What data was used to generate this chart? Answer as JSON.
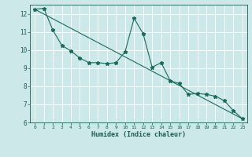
{
  "xlabel": "Humidex (Indice chaleur)",
  "ylabel": "",
  "bg_color": "#cce8e8",
  "grid_color": "#ffffff",
  "line_color": "#1a6b5a",
  "xlim": [
    -0.5,
    23.5
  ],
  "ylim": [
    6,
    12.5
  ],
  "xticks": [
    0,
    1,
    2,
    3,
    4,
    5,
    6,
    7,
    8,
    9,
    10,
    11,
    12,
    13,
    14,
    15,
    16,
    17,
    18,
    19,
    20,
    21,
    22,
    23
  ],
  "yticks": [
    6,
    7,
    8,
    9,
    10,
    11,
    12
  ],
  "line1_x": [
    0,
    1,
    2,
    3,
    4,
    5,
    6,
    7,
    8,
    9,
    10,
    11,
    12,
    13,
    14,
    15,
    16,
    17,
    18,
    19,
    20,
    21,
    22,
    23
  ],
  "line1_y": [
    12.25,
    12.3,
    11.1,
    10.25,
    9.95,
    9.55,
    9.3,
    9.3,
    9.25,
    9.3,
    9.9,
    11.75,
    10.9,
    9.05,
    9.3,
    8.3,
    8.15,
    7.55,
    7.6,
    7.55,
    7.45,
    7.2,
    6.65,
    6.2
  ],
  "line2_x": [
    0,
    23
  ],
  "line2_y": [
    12.25,
    6.2
  ]
}
